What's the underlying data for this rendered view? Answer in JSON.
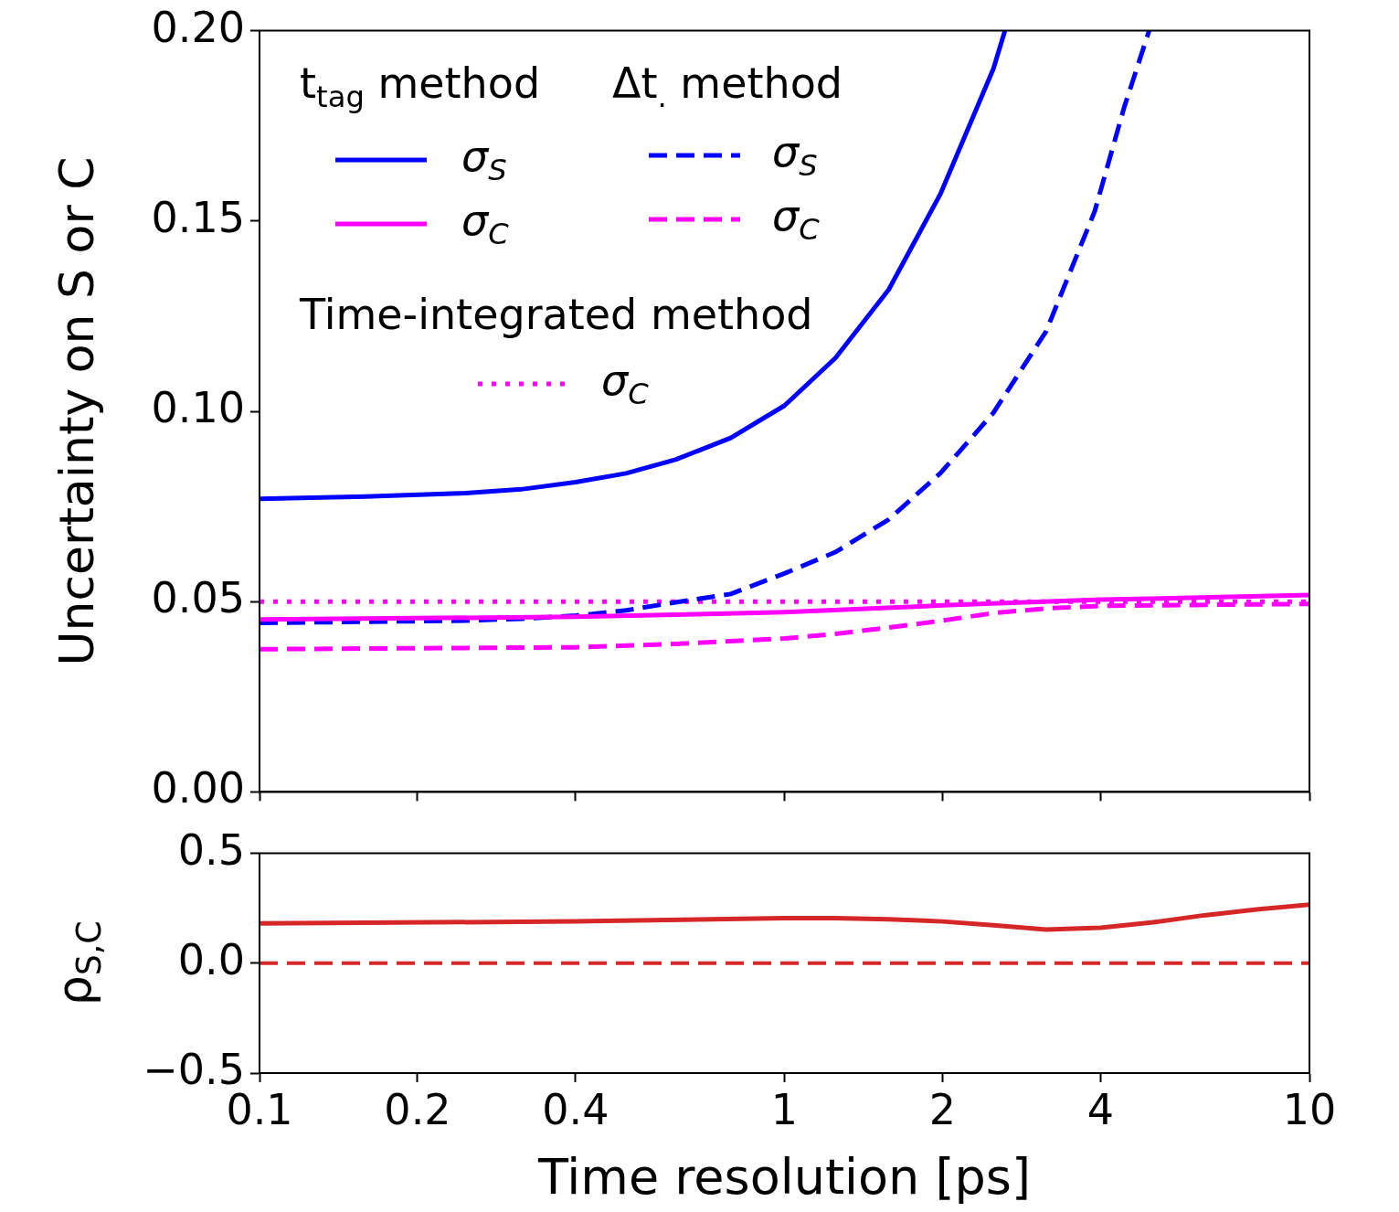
{
  "chart_data": [
    {
      "type": "line",
      "ylabel": "Uncertainty on S or C",
      "log": "x",
      "xlim": [
        0.1,
        10
      ],
      "xticks": [
        0.1,
        0.2,
        0.4,
        1,
        2,
        4,
        10
      ],
      "ylim": [
        0,
        0.2
      ],
      "yticks": [
        {
          "value": 0,
          "label": "0.00"
        },
        {
          "value": 0.05,
          "label": "0.05"
        },
        {
          "value": 0.1,
          "label": "0.10"
        },
        {
          "value": 0.15,
          "label": "0.15"
        },
        {
          "value": 0.2,
          "label": "0.20"
        }
      ],
      "tick_labels": "y",
      "grid": false,
      "legend": "top left",
      "annotations": [
        "t$_{tag}$ method",
        "Δt$_{.}$ method",
        "Time-integrated method"
      ],
      "series": [
        {
          "name": "σ$_{S}$",
          "color": "#0000ff",
          "line_style": "solid",
          "x": [
            0.1,
            0.159,
            0.247,
            0.315,
            0.4,
            0.499,
            0.62,
            0.79,
            1.0,
            1.25,
            1.58,
            1.98,
            2.5,
            2.63
          ],
          "values": [
            0.077,
            0.0776,
            0.0785,
            0.0795,
            0.0814,
            0.0837,
            0.0873,
            0.093,
            0.1015,
            0.114,
            0.132,
            0.157,
            0.19,
            0.2
          ]
        },
        {
          "name": "σ$_{C}$",
          "color": "#ff00ff",
          "line_style": "solid",
          "x": [
            0.1,
            0.4,
            1.0,
            2.0,
            4.0,
            10
          ],
          "values": [
            0.0453,
            0.046,
            0.0472,
            0.049,
            0.0505,
            0.0517
          ]
        },
        {
          "name": "σ$_{S}$",
          "color": "#0000ff",
          "line_style": "dashed",
          "x": [
            0.1,
            0.247,
            0.315,
            0.4,
            0.499,
            0.62,
            0.79,
            1.0,
            1.25,
            1.58,
            1.98,
            2.5,
            3.15,
            3.9,
            4.44,
            4.95
          ],
          "values": [
            0.0444,
            0.045,
            0.0455,
            0.0463,
            0.0477,
            0.0498,
            0.052,
            0.0574,
            0.063,
            0.0716,
            0.0837,
            0.0996,
            0.121,
            0.1526,
            0.18,
            0.2
          ]
        },
        {
          "name": "σ$_{C}$",
          "color": "#ff00ff",
          "line_style": "dashed",
          "x": [
            0.1,
            0.4,
            0.62,
            1.0,
            1.25,
            1.58,
            2.0,
            2.5,
            3.15,
            4.0,
            10
          ],
          "values": [
            0.0375,
            0.038,
            0.0389,
            0.0403,
            0.0415,
            0.0432,
            0.045,
            0.047,
            0.0482,
            0.0489,
            0.0494
          ]
        },
        {
          "name": "σ$_{C}$",
          "color": "#ff00ff",
          "line_style": "dotted",
          "x": [
            0.1,
            10
          ],
          "values": [
            0.05,
            0.05
          ]
        }
      ]
    },
    {
      "type": "line",
      "xlabel": "Time resolution [ps]",
      "ylabel": "ρ$_{S,C}$",
      "log": "x",
      "xlim": [
        0.1,
        10
      ],
      "xticks": [
        0.1,
        0.2,
        0.4,
        1,
        2,
        4,
        10
      ],
      "ylim": [
        -0.5,
        0.5
      ],
      "yticks": [
        {
          "value": -0.5,
          "label": "−0.5"
        },
        {
          "value": 0,
          "label": "0.0"
        },
        {
          "value": 0.5,
          "label": "0.5"
        }
      ],
      "grid": false,
      "series": [
        {
          "color": "#d62728",
          "line_style": "solid",
          "x": [
            0.1,
            0.4,
            1.0,
            1.25,
            1.58,
            2.0,
            2.5,
            3.15,
            4.0,
            5.0,
            6.3,
            8.0,
            10
          ],
          "values": [
            0.181,
            0.19,
            0.205,
            0.205,
            0.2,
            0.19,
            0.173,
            0.153,
            0.161,
            0.185,
            0.218,
            0.246,
            0.266
          ]
        }
      ],
      "ref_lines": [
        {
          "axis": "y",
          "value": 0,
          "color": "#d62728",
          "line_style": "dashed"
        }
      ]
    }
  ]
}
